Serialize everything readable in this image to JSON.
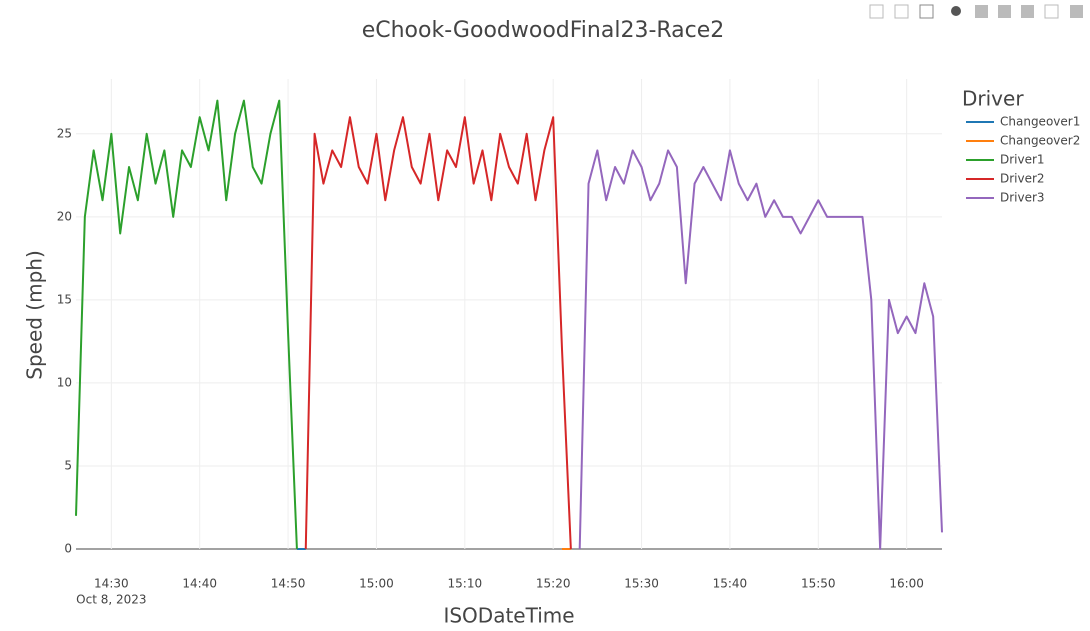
{
  "chart_data": {
    "type": "line",
    "title": "eChook-GoodwoodFinal23-Race2",
    "x_label": "ISODateTime",
    "y_label": "Speed (mph)",
    "legend_title": "Driver",
    "x_date_label": "Oct 8, 2023",
    "xlim": [
      "14:26",
      "16:04"
    ],
    "xticks": [
      "14:30",
      "14:40",
      "14:50",
      "15:00",
      "15:10",
      "15:20",
      "15:30",
      "15:40",
      "15:50",
      "16:00"
    ],
    "ylim": [
      0,
      28.3
    ],
    "yticks": [
      0,
      5,
      10,
      15,
      20,
      25
    ],
    "grid": true,
    "series": [
      {
        "name": "Changeover1",
        "color": "#1f77b4",
        "x": [
          "14:51",
          "14:52"
        ],
        "values": [
          0,
          0
        ]
      },
      {
        "name": "Changeover2",
        "color": "#ff7f0e",
        "x": [
          "15:21",
          "15:22"
        ],
        "values": [
          0,
          0
        ]
      },
      {
        "name": "Driver1",
        "color": "#2ca02c",
        "x": [
          "14:26",
          "14:27",
          "14:28",
          "14:29",
          "14:30",
          "14:31",
          "14:32",
          "14:33",
          "14:34",
          "14:35",
          "14:36",
          "14:37",
          "14:38",
          "14:39",
          "14:40",
          "14:41",
          "14:42",
          "14:43",
          "14:44",
          "14:45",
          "14:46",
          "14:47",
          "14:48",
          "14:49",
          "14:50",
          "14:51"
        ],
        "values": [
          2,
          20,
          24,
          21,
          25,
          19,
          23,
          21,
          25,
          22,
          24,
          20,
          24,
          23,
          26,
          24,
          27,
          21,
          25,
          27,
          23,
          22,
          25,
          27,
          13,
          0
        ]
      },
      {
        "name": "Driver2",
        "color": "#d62728",
        "x": [
          "14:52",
          "14:53",
          "14:54",
          "14:55",
          "14:56",
          "14:57",
          "14:58",
          "14:59",
          "15:00",
          "15:01",
          "15:02",
          "15:03",
          "15:04",
          "15:05",
          "15:06",
          "15:07",
          "15:08",
          "15:09",
          "15:10",
          "15:11",
          "15:12",
          "15:13",
          "15:14",
          "15:15",
          "15:16",
          "15:17",
          "15:18",
          "15:19",
          "15:20",
          "15:21",
          "15:22"
        ],
        "values": [
          0,
          25,
          22,
          24,
          23,
          26,
          23,
          22,
          25,
          21,
          24,
          26,
          23,
          22,
          25,
          21,
          24,
          23,
          26,
          22,
          24,
          21,
          25,
          23,
          22,
          25,
          21,
          24,
          26,
          12,
          0
        ]
      },
      {
        "name": "Driver3",
        "color": "#9467bd",
        "x": [
          "15:23",
          "15:24",
          "15:25",
          "15:26",
          "15:27",
          "15:28",
          "15:29",
          "15:30",
          "15:31",
          "15:32",
          "15:33",
          "15:34",
          "15:35",
          "15:36",
          "15:37",
          "15:38",
          "15:39",
          "15:40",
          "15:41",
          "15:42",
          "15:43",
          "15:44",
          "15:45",
          "15:46",
          "15:47",
          "15:48",
          "15:49",
          "15:50",
          "15:51",
          "15:52",
          "15:53",
          "15:54",
          "15:55",
          "15:56",
          "15:57",
          "15:58",
          "15:59",
          "16:00",
          "16:01",
          "16:02",
          "16:03",
          "16:04"
        ],
        "values": [
          0,
          22,
          24,
          21,
          23,
          22,
          24,
          23,
          21,
          22,
          24,
          23,
          16,
          22,
          23,
          22,
          21,
          24,
          22,
          21,
          22,
          20,
          21,
          20,
          20,
          19,
          20,
          21,
          20,
          20,
          20,
          20,
          20,
          15,
          0,
          15,
          13,
          14,
          13,
          16,
          14,
          1
        ]
      }
    ]
  }
}
